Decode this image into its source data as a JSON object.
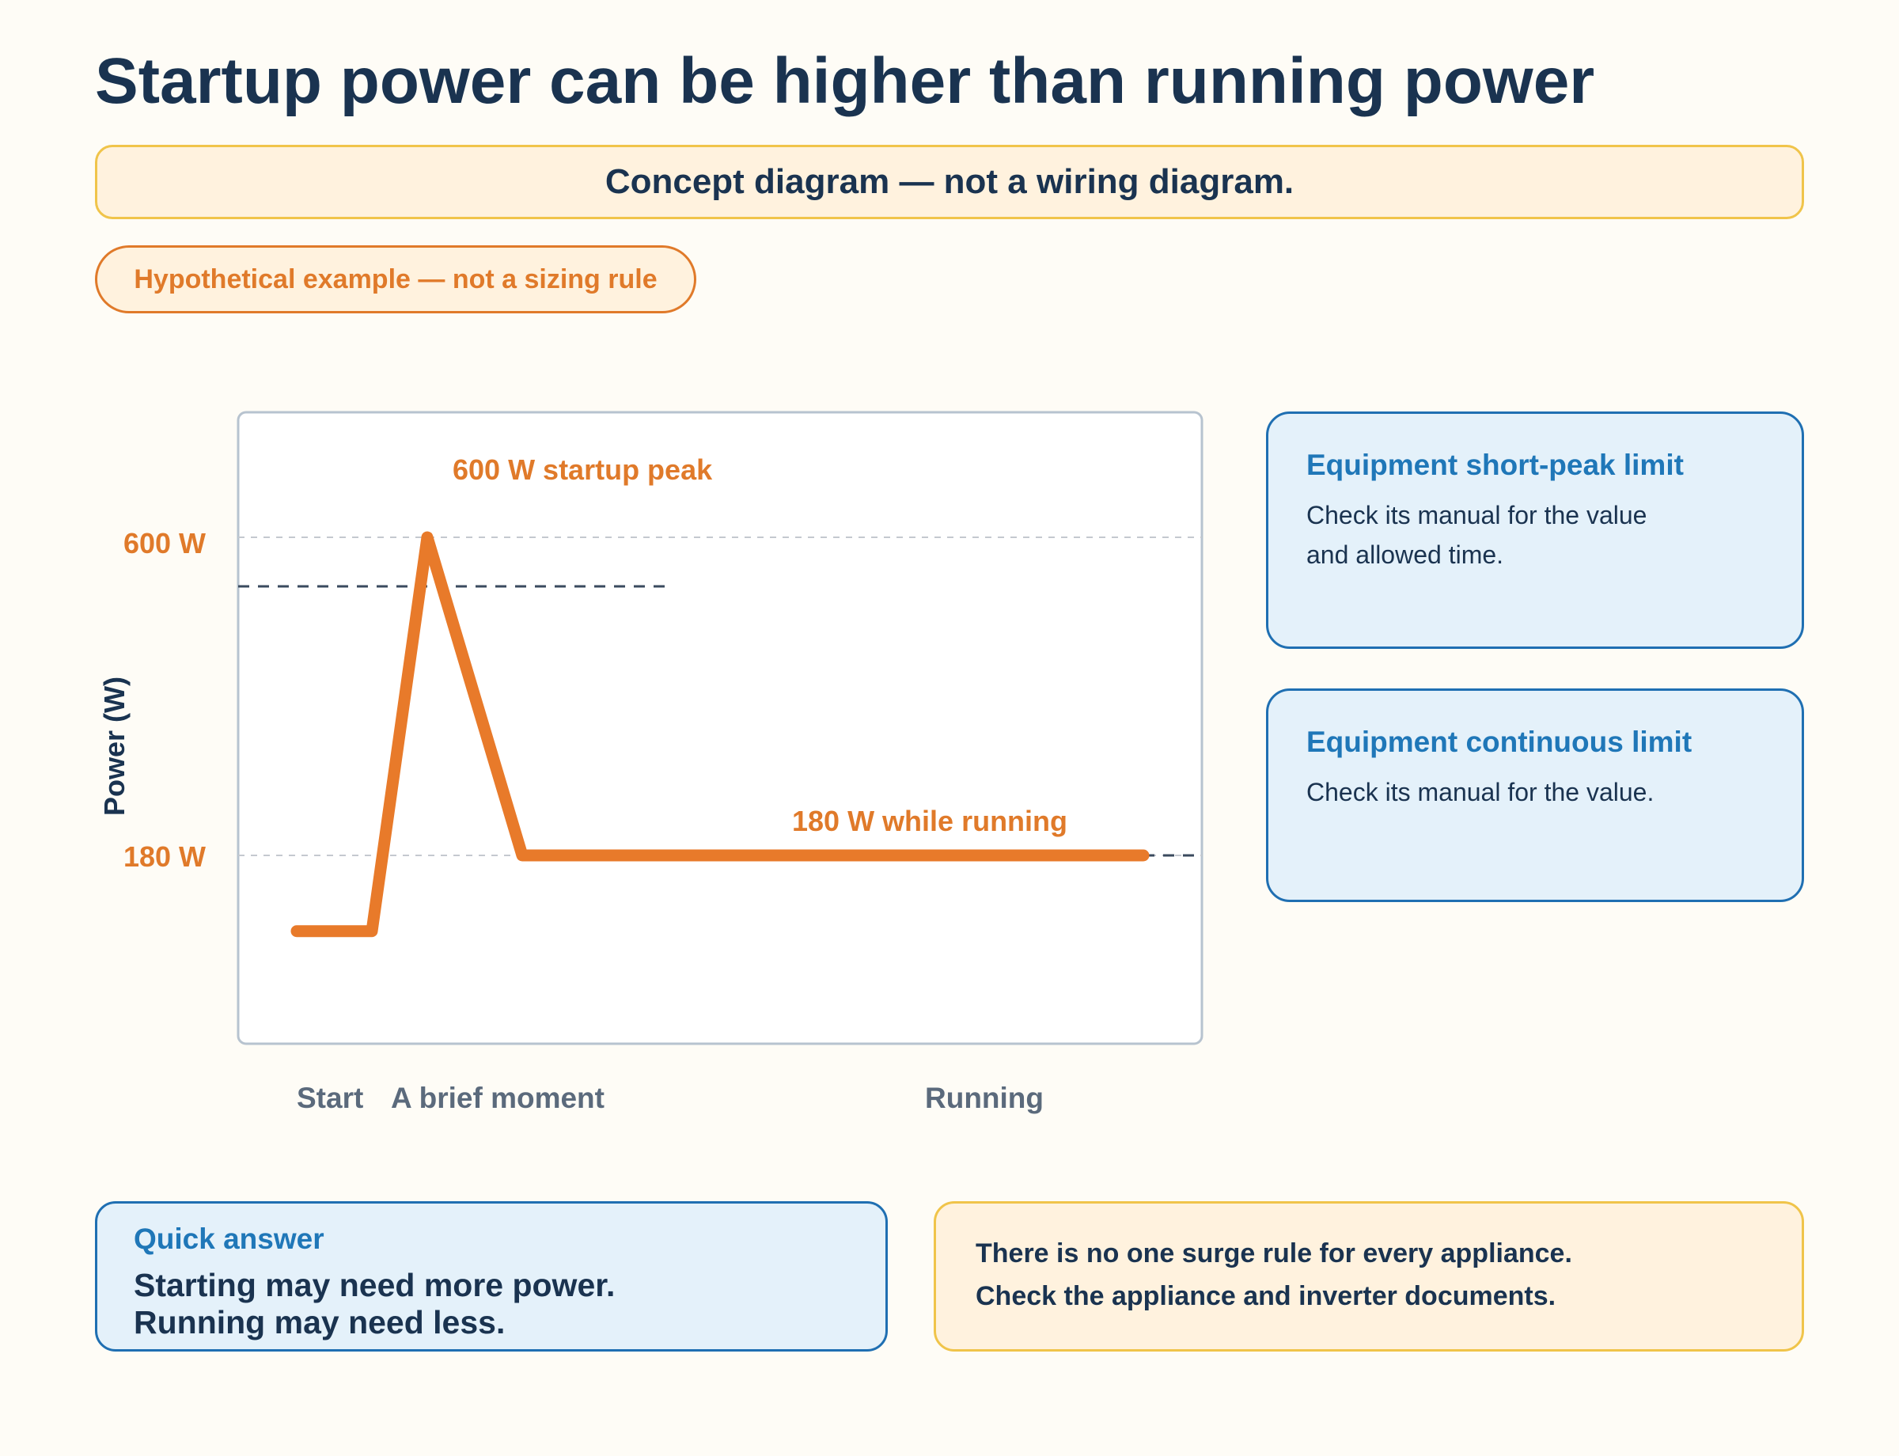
{
  "title": "Startup power can be higher than running power",
  "notice": "Concept diagram — not a wiring diagram.",
  "pill": "Hypothetical example — not a sizing rule",
  "chart_data": {
    "type": "line",
    "ylabel": "Power (W)",
    "y_ticks": [
      "600 W",
      "180 W"
    ],
    "x_labels": [
      "Start",
      "A brief moment",
      "Running"
    ],
    "annotations": {
      "peak": "600 W startup peak",
      "running": "180 W while running"
    },
    "series": [
      {
        "values": [
          {
            "x": "start",
            "y": 80
          },
          {
            "x": "start",
            "y": 80
          },
          {
            "x": "brief moment",
            "y": 600
          },
          {
            "x": "running",
            "y": 180
          },
          {
            "x": "running",
            "y": 180
          }
        ]
      }
    ],
    "reference_lines": [
      {
        "name": "short-peak limit",
        "y": 540,
        "style": "dashed"
      },
      {
        "name": "continuous limit",
        "y": 180,
        "style": "dashed"
      }
    ],
    "colors": {
      "line": "#e87a2a",
      "grid": "#c4c9cf",
      "limit": "#3a4a5e",
      "axis_text": "#5b6a7c"
    }
  },
  "boxes": {
    "peak": {
      "title": "Equipment short-peak limit",
      "text": "Check its manual for the value\nand allowed time."
    },
    "continuous": {
      "title": "Equipment continuous limit",
      "text": "Check its manual for the value."
    }
  },
  "quick": {
    "title": "Quick answer",
    "line1": "Starting may need more power.",
    "line2": "Running may need less."
  },
  "caution": {
    "line1": "There is no one surge rule for every appliance.",
    "line2": "Check the appliance and inverter documents."
  }
}
